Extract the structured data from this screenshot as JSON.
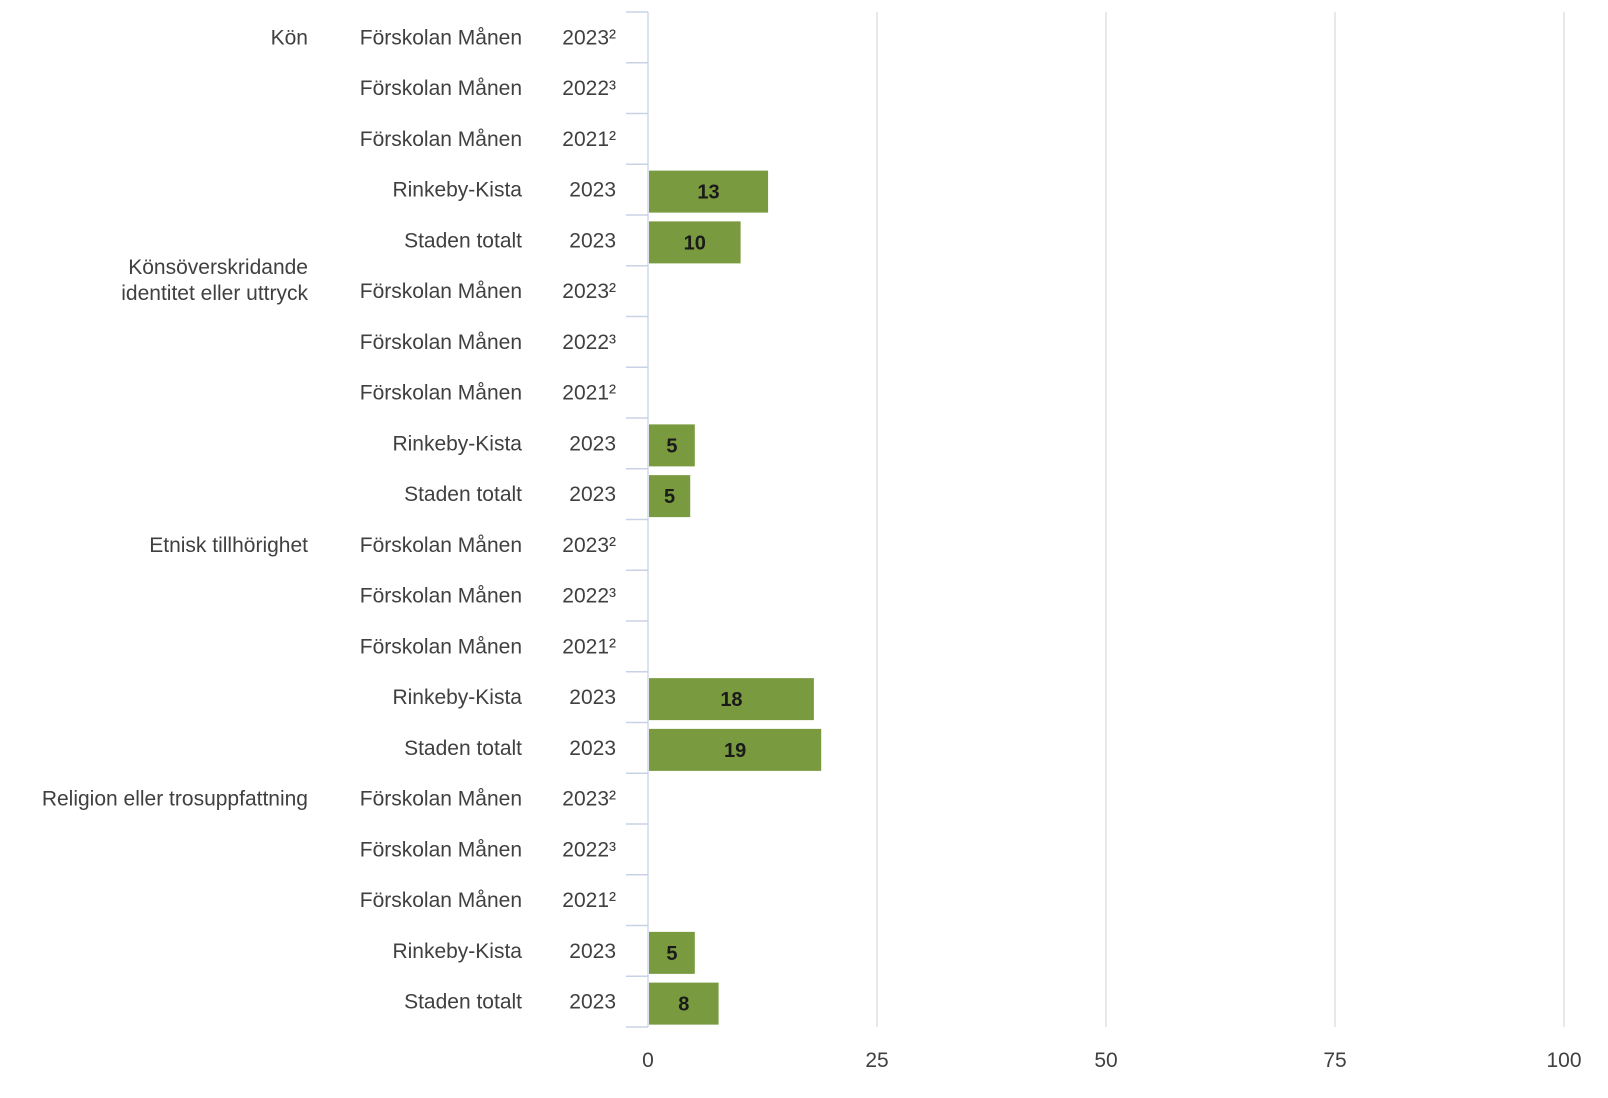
{
  "chart_data": {
    "type": "bar",
    "orientation": "horizontal",
    "bar_color": "#7a9a40",
    "grid": true,
    "xlim": [
      0,
      100
    ],
    "xticks": [
      "0",
      "25",
      "50",
      "75",
      "100"
    ],
    "groups": [
      {
        "name": "Kön",
        "rows": [
          {
            "unit": "Förskolan Månen",
            "year": "2023²",
            "value": null,
            "label": ""
          },
          {
            "unit": "Förskolan Månen",
            "year": "2022³",
            "value": null,
            "label": ""
          },
          {
            "unit": "Förskolan Månen",
            "year": "2021²",
            "value": null,
            "label": ""
          },
          {
            "unit": "Rinkeby-Kista",
            "year": "2023",
            "value": 13,
            "label": "13"
          },
          {
            "unit": "Staden totalt",
            "year": "2023",
            "value": 10,
            "label": "10"
          }
        ]
      },
      {
        "name": "Könsöverskridande identitet eller uttryck",
        "name_lines": [
          "Könsöverskridande",
          "identitet eller uttryck"
        ],
        "rows": [
          {
            "unit": "Förskolan Månen",
            "year": "2023²",
            "value": null,
            "label": ""
          },
          {
            "unit": "Förskolan Månen",
            "year": "2022³",
            "value": null,
            "label": ""
          },
          {
            "unit": "Förskolan Månen",
            "year": "2021²",
            "value": null,
            "label": ""
          },
          {
            "unit": "Rinkeby-Kista",
            "year": "2023",
            "value": 5,
            "label": "5"
          },
          {
            "unit": "Staden totalt",
            "year": "2023",
            "value": 4.5,
            "label": "5"
          }
        ]
      },
      {
        "name": "Etnisk tillhörighet",
        "rows": [
          {
            "unit": "Förskolan Månen",
            "year": "2023²",
            "value": null,
            "label": ""
          },
          {
            "unit": "Förskolan Månen",
            "year": "2022³",
            "value": null,
            "label": ""
          },
          {
            "unit": "Förskolan Månen",
            "year": "2021²",
            "value": null,
            "label": ""
          },
          {
            "unit": "Rinkeby-Kista",
            "year": "2023",
            "value": 18,
            "label": "18"
          },
          {
            "unit": "Staden totalt",
            "year": "2023",
            "value": 18.8,
            "label": "19"
          }
        ]
      },
      {
        "name": "Religion eller trosuppfattning",
        "rows": [
          {
            "unit": "Förskolan Månen",
            "year": "2023²",
            "value": null,
            "label": ""
          },
          {
            "unit": "Förskolan Månen",
            "year": "2022³",
            "value": null,
            "label": ""
          },
          {
            "unit": "Förskolan Månen",
            "year": "2021²",
            "value": null,
            "label": ""
          },
          {
            "unit": "Rinkeby-Kista",
            "year": "2023",
            "value": 5,
            "label": "5"
          },
          {
            "unit": "Staden totalt",
            "year": "2023",
            "value": 7.6,
            "label": "8"
          }
        ]
      }
    ]
  }
}
